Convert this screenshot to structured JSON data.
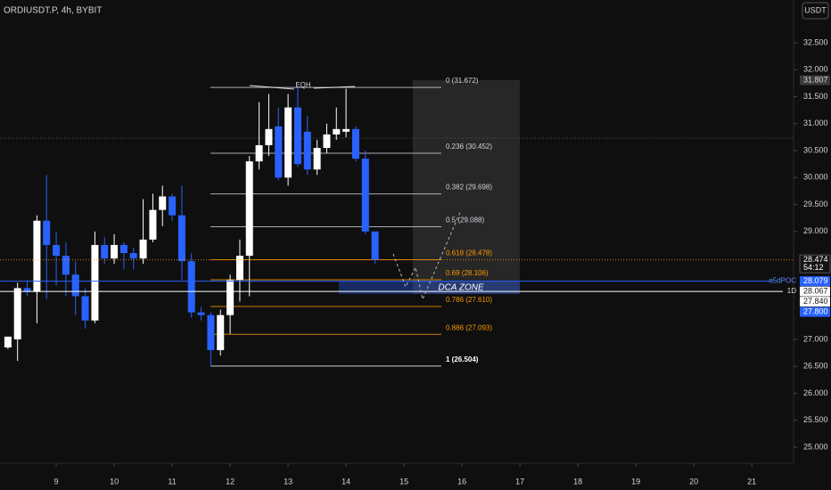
{
  "chart_data": {
    "type": "candlestick",
    "title": "ORDIUSDT.P, 4h, BYBIT",
    "currency": "USDT",
    "x": [
      8.167,
      8.333,
      8.5,
      8.667,
      8.833,
      9,
      9.167,
      9.333,
      9.5,
      9.667,
      9.833,
      10,
      10.167,
      10.333,
      10.5,
      10.667,
      10.833,
      11,
      11.167,
      11.333,
      11.5,
      11.667,
      11.833,
      12,
      12.167,
      12.333,
      12.5,
      12.667,
      12.833,
      13,
      13.167,
      13.333,
      13.5,
      13.667,
      13.833,
      14,
      14.167,
      14.333,
      14.5
    ],
    "open": [
      26.85,
      27.0,
      27.95,
      27.88,
      29.2,
      28.75,
      28.55,
      28.2,
      27.8,
      27.35,
      28.75,
      28.5,
      28.75,
      28.6,
      28.5,
      28.85,
      29.4,
      29.65,
      29.3,
      28.45,
      27.5,
      27.45,
      26.8,
      27.45,
      28.1,
      28.55,
      30.3,
      30.6,
      30.95,
      30.0,
      31.3,
      30.85,
      30.15,
      30.55,
      30.8,
      30.85,
      30.9,
      30.35,
      29.0
    ],
    "high": [
      27.05,
      28.05,
      28.1,
      29.3,
      30.05,
      29.0,
      28.8,
      28.45,
      27.95,
      29.0,
      28.9,
      28.95,
      28.8,
      28.7,
      29.6,
      29.7,
      29.85,
      29.7,
      29.85,
      28.6,
      27.6,
      27.5,
      27.55,
      28.2,
      28.85,
      30.4,
      31.4,
      31.55,
      31.3,
      31.55,
      31.7,
      31.15,
      30.7,
      31.0,
      31.3,
      31.65,
      30.95,
      30.5,
      29.0
    ],
    "low": [
      26.82,
      26.6,
      27.8,
      27.3,
      27.75,
      28.0,
      27.8,
      27.45,
      27.2,
      27.3,
      28.4,
      28.4,
      28.3,
      28.3,
      28.4,
      28.8,
      29.1,
      29.2,
      28.1,
      27.4,
      27.35,
      26.5,
      26.7,
      27.1,
      27.7,
      27.8,
      30.15,
      30.4,
      29.95,
      29.85,
      30.2,
      30.05,
      30.05,
      30.45,
      30.7,
      30.75,
      30.3,
      28.95,
      28.4
    ],
    "close": [
      27.05,
      27.95,
      27.88,
      29.2,
      28.75,
      28.55,
      28.2,
      27.8,
      27.35,
      28.75,
      28.5,
      28.75,
      28.6,
      28.5,
      28.85,
      29.4,
      29.65,
      29.3,
      28.45,
      27.5,
      27.45,
      26.8,
      27.45,
      28.1,
      28.55,
      30.3,
      30.6,
      30.9,
      30.0,
      31.3,
      30.25,
      30.15,
      30.55,
      30.8,
      30.9,
      30.9,
      30.35,
      29.0,
      28.474
    ],
    "up_color": "#ffffff",
    "down_color": "#2962ff",
    "xlim": [
      8.03,
      21.72
    ],
    "ylim": [
      24.702,
      33.293
    ],
    "xticks": [
      9,
      10,
      11,
      12,
      13,
      14,
      15,
      16,
      17,
      18,
      19,
      20,
      21
    ],
    "yticks": [
      {
        "value": 32.5,
        "label": "32.500"
      },
      {
        "value": 32.0,
        "label": "32.000"
      },
      {
        "value": 31.5,
        "label": "31.500"
      },
      {
        "value": 31.0,
        "label": "31.000"
      },
      {
        "value": 30.5,
        "label": "30.500"
      },
      {
        "value": 30.0,
        "label": "30.000"
      },
      {
        "value": 29.5,
        "label": "29.500"
      },
      {
        "value": 29.0,
        "label": "29.000"
      },
      {
        "value": 27.0,
        "label": "27.000"
      },
      {
        "value": 26.5,
        "label": "26.500"
      },
      {
        "value": 26.0,
        "label": "26.000"
      },
      {
        "value": 25.5,
        "label": "25.500"
      },
      {
        "value": 25.0,
        "label": "25.000"
      }
    ],
    "fib_levels": [
      {
        "value": 31.672,
        "label": "0 (31.672)",
        "color": "#d1d4dc"
      },
      {
        "value": 30.452,
        "label": "0.236 (30.452)",
        "color": "#d1d4dc"
      },
      {
        "value": 29.698,
        "label": "0.382 (29.698)",
        "color": "#d1d4dc"
      },
      {
        "value": 29.088,
        "label": "0.5 (29.088)",
        "color": "#d1d4dc"
      },
      {
        "value": 28.478,
        "label": "0.618 (28.478)",
        "color": "#ff9800"
      },
      {
        "value": 28.106,
        "label": "0.69 (28.106)",
        "color": "#ff9800"
      },
      {
        "value": 27.61,
        "label": "0.786 (27.610)",
        "color": "#ff9800"
      },
      {
        "value": 27.093,
        "label": "0.886 (27.093)",
        "color": "#ff9800"
      },
      {
        "value": 26.504,
        "label": "1 (26.504)",
        "color": "#ffffff"
      }
    ],
    "price_tags": [
      {
        "value": 31.807,
        "label": "31.807",
        "color": "#3b3b3b",
        "text_color": "#d1d4dc"
      },
      {
        "value": 28.474,
        "label": "28.474",
        "countdown": "54:12",
        "color": "#131313",
        "text_color": "#ffffff"
      },
      {
        "value": 28.079,
        "label": "28.079",
        "tag": "n5dPOC",
        "color": "#2962ff",
        "text_color": "#ffffff"
      },
      {
        "value": 28.067,
        "label": "28.067",
        "tag": "1D",
        "color": "#ffffff",
        "text_color": "#131313"
      },
      {
        "value": 27.84,
        "label": "27.840",
        "color": "#ffffff",
        "text_color": "#131313"
      },
      {
        "value": 27.8,
        "label": "27.800",
        "color": "#2962ff",
        "text_color": "#ffffff"
      }
    ],
    "annotations": [
      "EQH",
      "DCA ZONE"
    ]
  }
}
